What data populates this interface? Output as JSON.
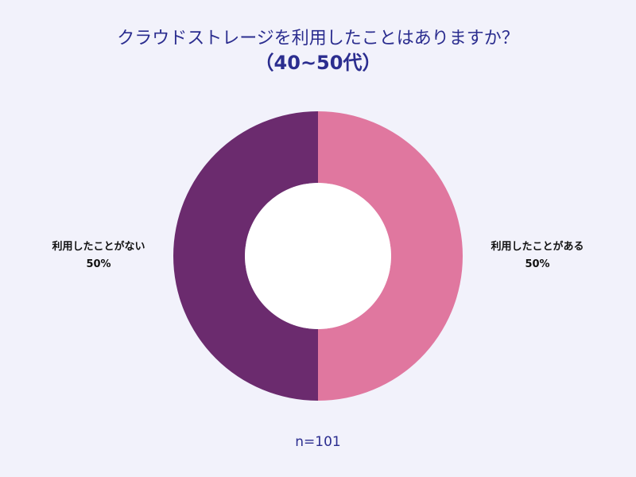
{
  "chart_data": {
    "type": "pie",
    "style": "donut",
    "title": "クラウドストレージを利用したことはありますか？",
    "subtitle": "（40~50代）",
    "slices": [
      {
        "label": "利用したことがある",
        "value": 50,
        "value_label": "50%",
        "color": "#e0779f"
      },
      {
        "label": "利用したことがない",
        "value": 50,
        "value_label": "50%",
        "color": "#6b2b6e"
      }
    ],
    "sample_size": "n=101"
  }
}
